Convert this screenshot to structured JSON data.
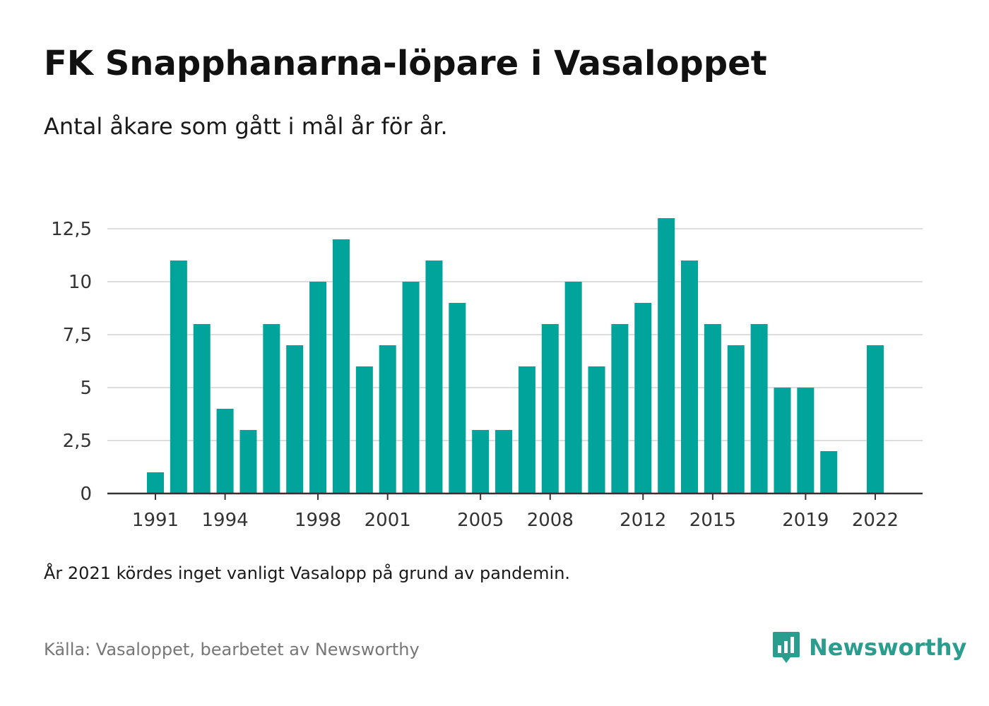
{
  "header": {
    "title": "FK Snapphanarna-löpare i Vasaloppet",
    "subtitle": "Antal åkare som gått i mål år för år."
  },
  "footer": {
    "note": "År 2021 kördes inget vanligt Vasalopp på grund av pandemin.",
    "source": "Källa: Vasaloppet, bearbetet av Newsworthy",
    "brand": "Newsworthy",
    "brand_icon": "newsworthy-logo-icon"
  },
  "colors": {
    "bar": "#00a49a",
    "grid": "#dddddd",
    "axis": "#333333",
    "brand": "#2a9d8f"
  },
  "chart_data": {
    "type": "bar",
    "title": "",
    "xlabel": "",
    "ylabel": "",
    "categories": [
      1991,
      1992,
      1993,
      1994,
      1995,
      1996,
      1997,
      1998,
      1999,
      2000,
      2001,
      2002,
      2003,
      2004,
      2005,
      2006,
      2007,
      2008,
      2009,
      2010,
      2011,
      2012,
      2013,
      2014,
      2015,
      2016,
      2017,
      2018,
      2019,
      2020,
      2021,
      2022
    ],
    "values": [
      1,
      11,
      8,
      4,
      3,
      8,
      7,
      10,
      12,
      6,
      7,
      10,
      11,
      9,
      3,
      3,
      6,
      8,
      10,
      6,
      8,
      9,
      13,
      11,
      8,
      7,
      8,
      5,
      5,
      2,
      0,
      7
    ],
    "x_tick_labels": [
      "1991",
      "1994",
      "1998",
      "2001",
      "2005",
      "2008",
      "2012",
      "2015",
      "2019",
      "2022"
    ],
    "y_ticks": [
      0,
      2.5,
      5,
      7.5,
      10,
      12.5
    ],
    "y_tick_labels": [
      "0",
      "2,5",
      "5",
      "7,5",
      "10",
      "12,5"
    ],
    "ylim": [
      0,
      12.5
    ],
    "grid": true,
    "legend": "none"
  }
}
